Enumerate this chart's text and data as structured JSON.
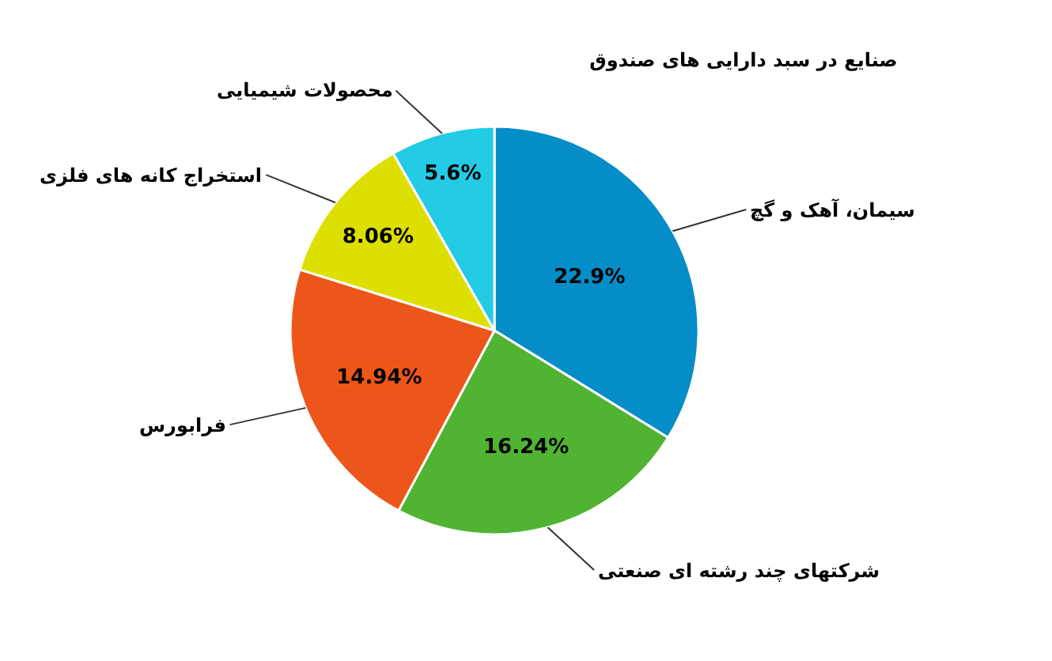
{
  "chart_data": {
    "type": "pie",
    "title": "صنایع در سبد دارایی های صندوق",
    "categories": [
      "سیمان، آهک و گچ",
      "شرکتهای چند رشته ای صنعتی",
      "فرابورس",
      "استخراج کانه های فلزی",
      "محصولات شیمیایی"
    ],
    "values": [
      22.9,
      16.24,
      14.94,
      8.06,
      5.6
    ],
    "value_labels": [
      "22.9%",
      "16.24%",
      "14.94%",
      "8.06%",
      "5.6%"
    ],
    "colors": [
      "#058dc7",
      "#50b432",
      "#ed561b",
      "#dddf00",
      "#24cbe5"
    ],
    "legend": false
  }
}
